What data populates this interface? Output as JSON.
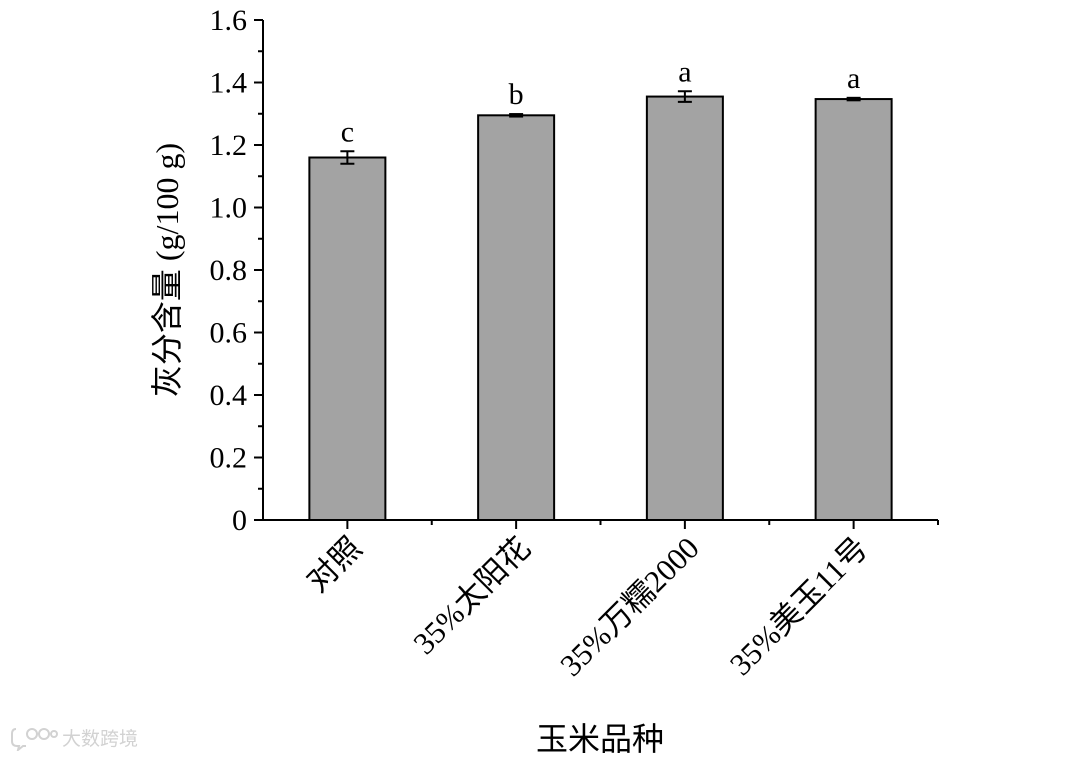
{
  "chart_data": {
    "type": "bar",
    "categories": [
      "对照",
      "35%太阳花",
      "35%万糯2000",
      "35%美玉11号"
    ],
    "values": [
      1.16,
      1.295,
      1.355,
      1.347
    ],
    "errors": [
      0.02,
      0.004,
      0.017,
      0.004
    ],
    "significance_letters": [
      "c",
      "b",
      "a",
      "a"
    ],
    "xlabel": "玉米品种",
    "ylabel": "灰分含量 (g/100 g)",
    "ylim": [
      0,
      1.6
    ],
    "yticks": [
      0,
      0.2,
      0.4,
      0.6,
      0.8,
      1.0,
      1.2,
      1.4,
      1.6
    ],
    "ytick_labels": [
      "0",
      "0.2",
      "0.4",
      "0.6",
      "0.8",
      "1.0",
      "1.2",
      "1.4",
      "1.6"
    ],
    "bar_color": "#a3a3a3",
    "grid": false,
    "legend": "none"
  },
  "watermark": {
    "text": "大数跨境",
    "icon": "chat-bubble-logo-icon"
  }
}
